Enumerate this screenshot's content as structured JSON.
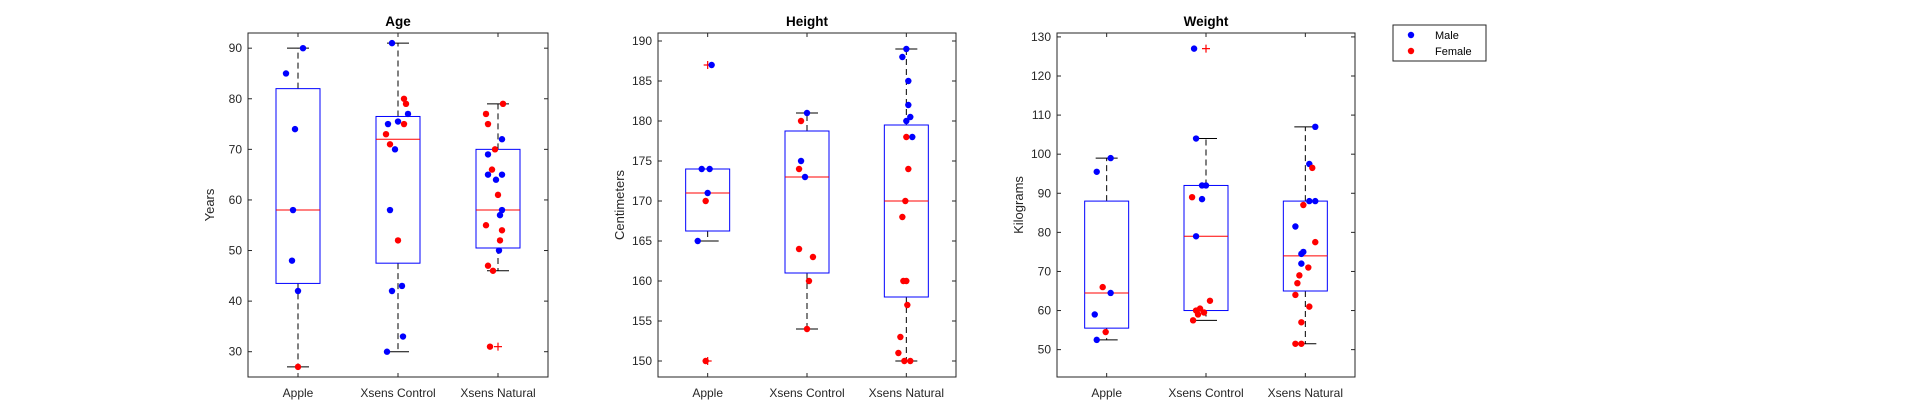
{
  "colors": {
    "male": "#0000ff",
    "female": "#ff0000",
    "box": "#0000ff",
    "median": "#ff0000",
    "whisker": "#000000",
    "outlier": "#ff0000"
  },
  "legend": {
    "placement": "top-right",
    "entries": [
      {
        "label": "Male",
        "color": "#0000ff"
      },
      {
        "label": "Female",
        "color": "#ff0000"
      }
    ]
  },
  "chart_data": [
    {
      "type": "box",
      "title": "Age",
      "ylabel": "Years",
      "categories": [
        "Apple",
        "Xsens Control",
        "Xsens Natural"
      ],
      "ylim": [
        25,
        93
      ],
      "yticks": [
        30,
        40,
        50,
        60,
        70,
        80,
        90
      ],
      "boxes": [
        {
          "q1": 43.5,
          "median": 58,
          "q3": 82,
          "whisker_low": 27,
          "whisker_high": 90,
          "outliers": []
        },
        {
          "q1": 47.5,
          "median": 72,
          "q3": 76.5,
          "whisker_low": 30,
          "whisker_high": 91,
          "outliers": []
        },
        {
          "q1": 50.5,
          "median": 58,
          "q3": 70,
          "whisker_low": 46,
          "whisker_high": 79,
          "outliers": [
            31
          ]
        }
      ],
      "points": [
        [
          {
            "dx": 0.05,
            "y": 90,
            "g": "male"
          },
          {
            "dx": -0.12,
            "y": 85,
            "g": "male"
          },
          {
            "dx": -0.03,
            "y": 74,
            "g": "male"
          },
          {
            "dx": -0.05,
            "y": 58,
            "g": "male"
          },
          {
            "dx": -0.06,
            "y": 48,
            "g": "male"
          },
          {
            "dx": 0.0,
            "y": 42,
            "g": "male"
          },
          {
            "dx": 0.0,
            "y": 27,
            "g": "female"
          }
        ],
        [
          {
            "dx": -0.06,
            "y": 91,
            "g": "male"
          },
          {
            "dx": 0.06,
            "y": 80,
            "g": "female"
          },
          {
            "dx": 0.08,
            "y": 79,
            "g": "female"
          },
          {
            "dx": 0.1,
            "y": 77,
            "g": "male"
          },
          {
            "dx": -0.1,
            "y": 75,
            "g": "male"
          },
          {
            "dx": 0.0,
            "y": 75.5,
            "g": "male"
          },
          {
            "dx": 0.06,
            "y": 75,
            "g": "female"
          },
          {
            "dx": -0.12,
            "y": 73,
            "g": "female"
          },
          {
            "dx": -0.08,
            "y": 71,
            "g": "female"
          },
          {
            "dx": -0.03,
            "y": 70,
            "g": "male"
          },
          {
            "dx": -0.08,
            "y": 58,
            "g": "male"
          },
          {
            "dx": 0.0,
            "y": 52,
            "g": "female"
          },
          {
            "dx": 0.04,
            "y": 43,
            "g": "male"
          },
          {
            "dx": -0.06,
            "y": 42,
            "g": "male"
          },
          {
            "dx": 0.05,
            "y": 33,
            "g": "male"
          },
          {
            "dx": -0.11,
            "y": 30,
            "g": "male"
          }
        ],
        [
          {
            "dx": 0.05,
            "y": 79,
            "g": "female"
          },
          {
            "dx": -0.12,
            "y": 77,
            "g": "female"
          },
          {
            "dx": -0.1,
            "y": 75,
            "g": "female"
          },
          {
            "dx": 0.04,
            "y": 72,
            "g": "male"
          },
          {
            "dx": -0.03,
            "y": 70,
            "g": "female"
          },
          {
            "dx": -0.1,
            "y": 69,
            "g": "male"
          },
          {
            "dx": -0.06,
            "y": 66,
            "g": "female"
          },
          {
            "dx": 0.04,
            "y": 65,
            "g": "male"
          },
          {
            "dx": -0.1,
            "y": 65,
            "g": "male"
          },
          {
            "dx": -0.02,
            "y": 64,
            "g": "male"
          },
          {
            "dx": 0.0,
            "y": 61,
            "g": "female"
          },
          {
            "dx": 0.04,
            "y": 58,
            "g": "male"
          },
          {
            "dx": 0.02,
            "y": 57,
            "g": "male"
          },
          {
            "dx": -0.12,
            "y": 55,
            "g": "female"
          },
          {
            "dx": 0.04,
            "y": 54,
            "g": "female"
          },
          {
            "dx": 0.02,
            "y": 52,
            "g": "female"
          },
          {
            "dx": 0.01,
            "y": 50,
            "g": "male"
          },
          {
            "dx": -0.1,
            "y": 47,
            "g": "female"
          },
          {
            "dx": -0.05,
            "y": 46,
            "g": "female"
          },
          {
            "dx": -0.08,
            "y": 31,
            "g": "female"
          }
        ]
      ]
    },
    {
      "type": "box",
      "title": "Height",
      "ylabel": "Centimeters",
      "categories": [
        "Apple",
        "Xsens Control",
        "Xsens Natural"
      ],
      "ylim": [
        148,
        191
      ],
      "yticks": [
        150,
        155,
        160,
        165,
        170,
        175,
        180,
        185,
        190
      ],
      "boxes": [
        {
          "q1": 166.25,
          "median": 171,
          "q3": 174,
          "whisker_low": 165,
          "whisker_high": 174,
          "outliers": [
            150,
            187
          ]
        },
        {
          "q1": 161,
          "median": 173,
          "q3": 178.75,
          "whisker_low": 154,
          "whisker_high": 181,
          "outliers": []
        },
        {
          "q1": 158,
          "median": 170,
          "q3": 179.5,
          "whisker_low": 150,
          "whisker_high": 189,
          "outliers": []
        }
      ],
      "points": [
        [
          {
            "dx": 0.04,
            "y": 187,
            "g": "male"
          },
          {
            "dx": -0.06,
            "y": 174,
            "g": "male"
          },
          {
            "dx": 0.02,
            "y": 174,
            "g": "male"
          },
          {
            "dx": 0.0,
            "y": 171,
            "g": "male"
          },
          {
            "dx": -0.02,
            "y": 170,
            "g": "female"
          },
          {
            "dx": -0.1,
            "y": 165,
            "g": "male"
          },
          {
            "dx": -0.02,
            "y": 150,
            "g": "female"
          }
        ],
        [
          {
            "dx": 0.0,
            "y": 181,
            "g": "male"
          },
          {
            "dx": -0.06,
            "y": 180,
            "g": "female"
          },
          {
            "dx": -0.06,
            "y": 175,
            "g": "male"
          },
          {
            "dx": -0.08,
            "y": 174,
            "g": "female"
          },
          {
            "dx": -0.02,
            "y": 173,
            "g": "male"
          },
          {
            "dx": -0.08,
            "y": 164,
            "g": "female"
          },
          {
            "dx": 0.06,
            "y": 163,
            "g": "female"
          },
          {
            "dx": 0.02,
            "y": 160,
            "g": "female"
          },
          {
            "dx": 0.0,
            "y": 154,
            "g": "female"
          }
        ],
        [
          {
            "dx": 0.0,
            "y": 189,
            "g": "male"
          },
          {
            "dx": -0.04,
            "y": 188,
            "g": "male"
          },
          {
            "dx": 0.02,
            "y": 185,
            "g": "male"
          },
          {
            "dx": 0.02,
            "y": 182,
            "g": "male"
          },
          {
            "dx": 0.04,
            "y": 180.5,
            "g": "male"
          },
          {
            "dx": 0.0,
            "y": 180,
            "g": "male"
          },
          {
            "dx": 0.06,
            "y": 178,
            "g": "male"
          },
          {
            "dx": 0.0,
            "y": 178,
            "g": "female"
          },
          {
            "dx": 0.02,
            "y": 174,
            "g": "female"
          },
          {
            "dx": -0.01,
            "y": 170,
            "g": "female"
          },
          {
            "dx": -0.04,
            "y": 168,
            "g": "female"
          },
          {
            "dx": -0.03,
            "y": 160,
            "g": "female"
          },
          {
            "dx": 0.0,
            "y": 160,
            "g": "female"
          },
          {
            "dx": 0.01,
            "y": 157,
            "g": "female"
          },
          {
            "dx": -0.06,
            "y": 153,
            "g": "female"
          },
          {
            "dx": -0.08,
            "y": 151,
            "g": "female"
          },
          {
            "dx": -0.02,
            "y": 150,
            "g": "female"
          },
          {
            "dx": 0.04,
            "y": 150,
            "g": "female"
          }
        ]
      ]
    },
    {
      "type": "box",
      "title": "Weight",
      "ylabel": "Kilograms",
      "categories": [
        "Apple",
        "Xsens Control",
        "Xsens Natural"
      ],
      "ylim": [
        43,
        131
      ],
      "yticks": [
        50,
        60,
        70,
        80,
        90,
        100,
        110,
        120,
        130
      ],
      "boxes": [
        {
          "q1": 55.5,
          "median": 64.5,
          "q3": 88,
          "whisker_low": 52.5,
          "whisker_high": 99,
          "outliers": []
        },
        {
          "q1": 60,
          "median": 79,
          "q3": 92,
          "whisker_low": 57.5,
          "whisker_high": 104,
          "outliers": [
            127
          ]
        },
        {
          "q1": 65,
          "median": 74,
          "q3": 88,
          "whisker_low": 51.5,
          "whisker_high": 107,
          "outliers": []
        }
      ],
      "points": [
        [
          {
            "dx": 0.04,
            "y": 99,
            "g": "male"
          },
          {
            "dx": -0.1,
            "y": 95.5,
            "g": "male"
          },
          {
            "dx": -0.04,
            "y": 66,
            "g": "female"
          },
          {
            "dx": 0.04,
            "y": 64.5,
            "g": "male"
          },
          {
            "dx": -0.12,
            "y": 59,
            "g": "male"
          },
          {
            "dx": -0.01,
            "y": 54.5,
            "g": "female"
          },
          {
            "dx": -0.1,
            "y": 52.5,
            "g": "male"
          }
        ],
        [
          {
            "dx": -0.12,
            "y": 127,
            "g": "male"
          },
          {
            "dx": -0.1,
            "y": 104,
            "g": "male"
          },
          {
            "dx": 0.0,
            "y": 92,
            "g": "male"
          },
          {
            "dx": -0.04,
            "y": 92,
            "g": "male"
          },
          {
            "dx": -0.14,
            "y": 89,
            "g": "female"
          },
          {
            "dx": -0.04,
            "y": 88.5,
            "g": "male"
          },
          {
            "dx": -0.1,
            "y": 79,
            "g": "male"
          },
          {
            "dx": 0.04,
            "y": 62.5,
            "g": "female"
          },
          {
            "dx": -0.06,
            "y": 60.5,
            "g": "female"
          },
          {
            "dx": -0.1,
            "y": 60,
            "g": "female"
          },
          {
            "dx": -0.02,
            "y": 59.5,
            "g": "female"
          },
          {
            "dx": -0.08,
            "y": 59,
            "g": "female"
          },
          {
            "dx": -0.13,
            "y": 57.5,
            "g": "female"
          }
        ],
        [
          {
            "dx": 0.1,
            "y": 107,
            "g": "male"
          },
          {
            "dx": 0.04,
            "y": 97.5,
            "g": "male"
          },
          {
            "dx": 0.07,
            "y": 96.5,
            "g": "female"
          },
          {
            "dx": 0.1,
            "y": 88,
            "g": "male"
          },
          {
            "dx": 0.04,
            "y": 88,
            "g": "male"
          },
          {
            "dx": -0.02,
            "y": 87,
            "g": "female"
          },
          {
            "dx": -0.1,
            "y": 81.5,
            "g": "male"
          },
          {
            "dx": 0.1,
            "y": 77.5,
            "g": "female"
          },
          {
            "dx": -0.02,
            "y": 75,
            "g": "male"
          },
          {
            "dx": -0.04,
            "y": 74.5,
            "g": "male"
          },
          {
            "dx": -0.04,
            "y": 72,
            "g": "male"
          },
          {
            "dx": 0.03,
            "y": 71,
            "g": "female"
          },
          {
            "dx": -0.06,
            "y": 69,
            "g": "female"
          },
          {
            "dx": -0.08,
            "y": 67,
            "g": "female"
          },
          {
            "dx": -0.1,
            "y": 64,
            "g": "female"
          },
          {
            "dx": 0.04,
            "y": 61,
            "g": "female"
          },
          {
            "dx": -0.04,
            "y": 57,
            "g": "female"
          },
          {
            "dx": -0.1,
            "y": 51.5,
            "g": "female"
          },
          {
            "dx": -0.04,
            "y": 51.5,
            "g": "female"
          }
        ]
      ]
    }
  ]
}
